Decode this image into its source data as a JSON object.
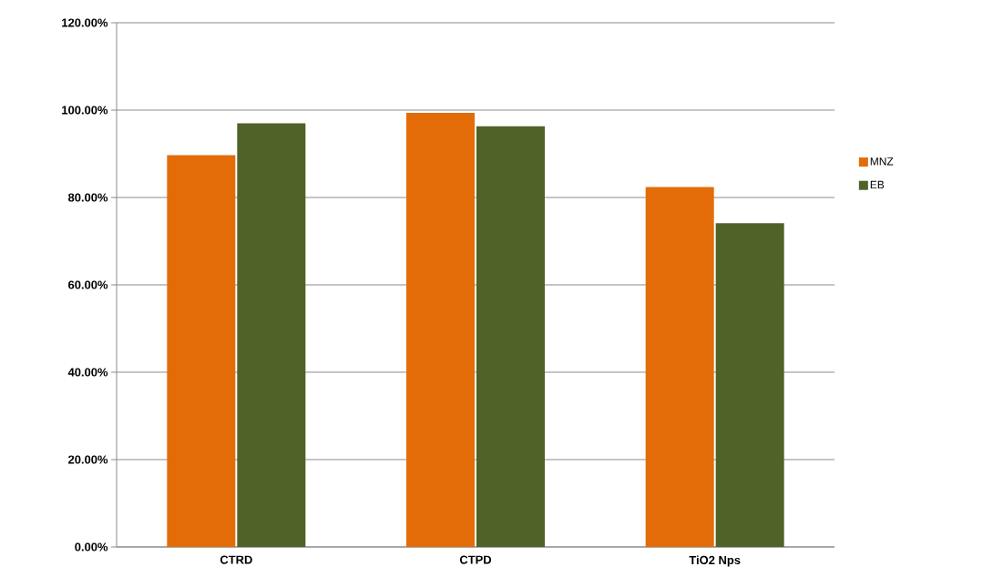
{
  "chart_data": {
    "type": "bar",
    "categories": [
      "CTRD",
      "CTPD",
      "TiO2 Nps"
    ],
    "series": [
      {
        "name": "MNZ",
        "color": "#e36c09",
        "values": [
          89.7,
          99.4,
          82.4
        ]
      },
      {
        "name": "EB",
        "color": "#4f6228",
        "values": [
          97.0,
          96.3,
          74.1
        ]
      }
    ],
    "ylim": [
      0,
      120
    ],
    "yticks": [
      {
        "value": 0,
        "label": "0.00%"
      },
      {
        "value": 20,
        "label": "20.00%"
      },
      {
        "value": 40,
        "label": "40.00%"
      },
      {
        "value": 60,
        "label": "60.00%"
      },
      {
        "value": 80,
        "label": "80.00%"
      },
      {
        "value": 100,
        "label": "100.00%"
      },
      {
        "value": 120,
        "label": "120.00%"
      }
    ],
    "grid": "y",
    "legend": "right"
  }
}
